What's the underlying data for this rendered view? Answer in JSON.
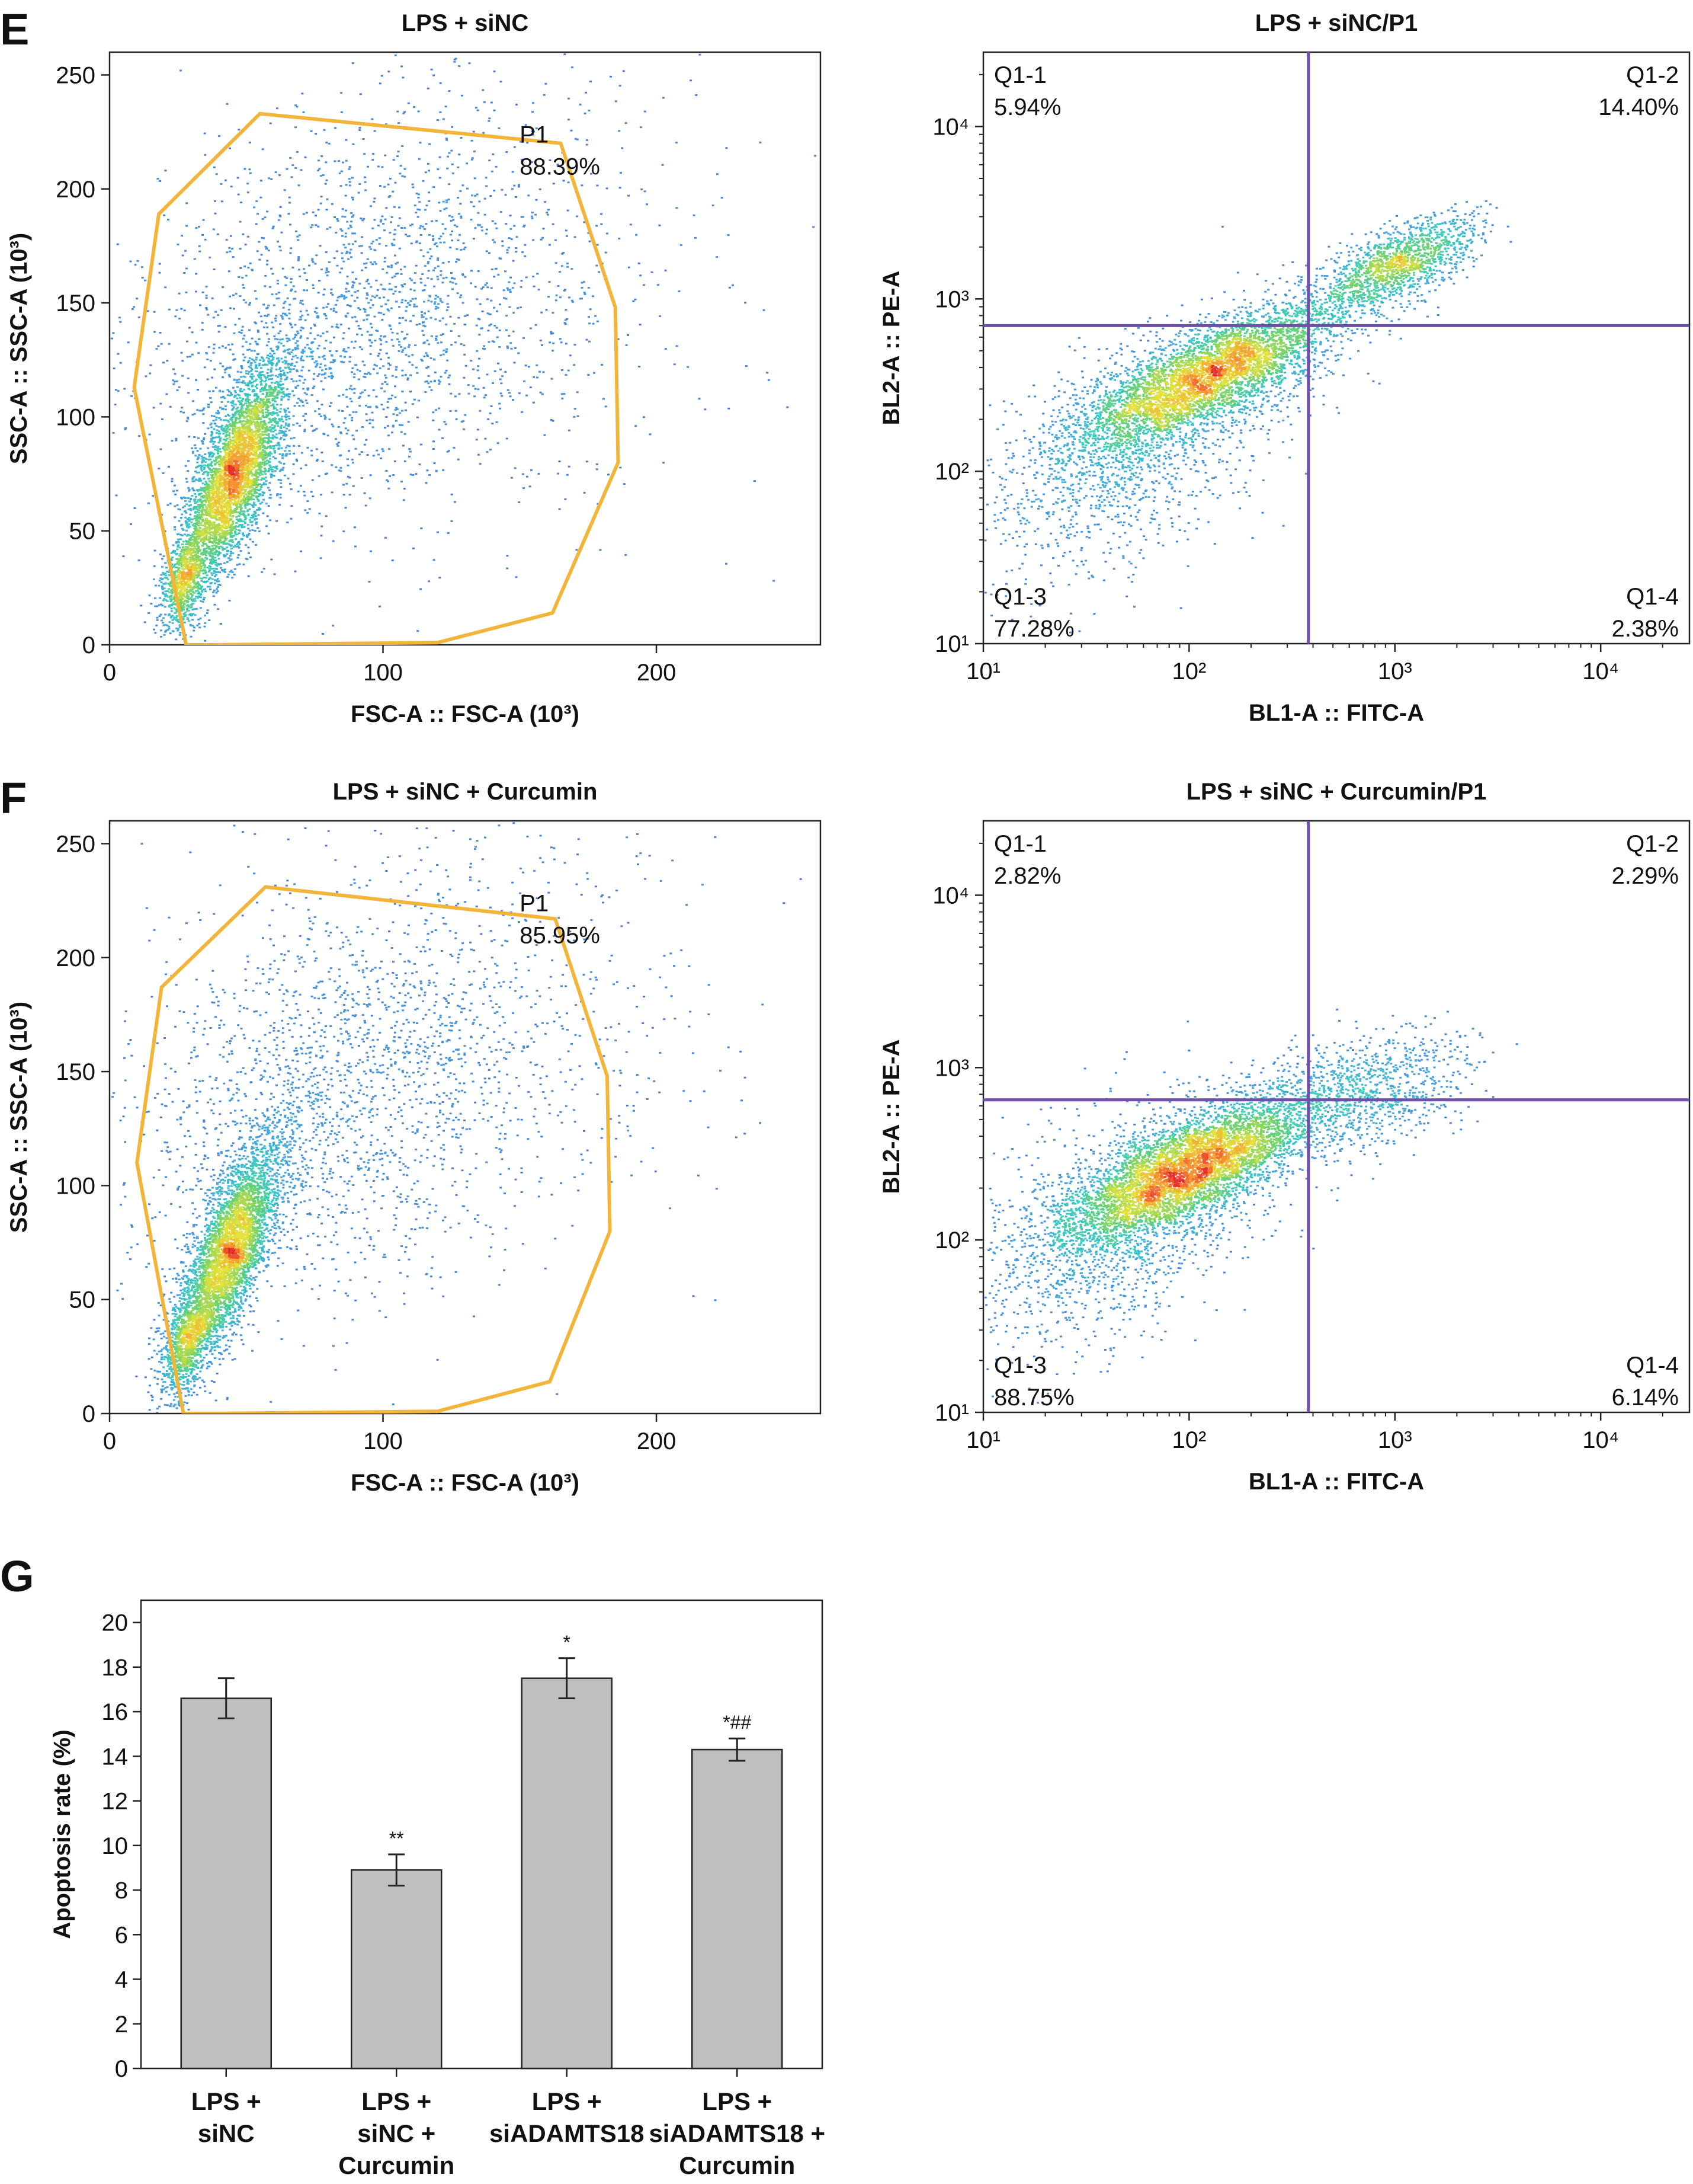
{
  "panels": [
    {
      "letter": "E",
      "anchor_plot": 0
    },
    {
      "letter": "F",
      "anchor_plot": 2
    },
    {
      "letter": "G",
      "anchor_plot": 4
    }
  ],
  "chart_data": [
    {
      "type": "scatter",
      "title": "LPS + siNC",
      "xlabel": "FSC-A :: FSC-A (10³)",
      "ylabel": "SSC-A :: SSC-A (10³)",
      "xlim": [
        0,
        260
      ],
      "ylim": [
        0,
        260
      ],
      "x_ticks": [
        0,
        100,
        200
      ],
      "y_ticks": [
        0,
        50,
        100,
        150,
        200,
        250
      ],
      "scale": "linear",
      "grid": false,
      "density": {
        "seed": 11,
        "clusters": [
          {
            "x": 45,
            "y": 75,
            "sx": 10,
            "sy": 25,
            "rho": 0.72,
            "n": 4200
          },
          {
            "x": 27,
            "y": 28,
            "sx": 4,
            "sy": 10,
            "rho": 0.4,
            "n": 700
          },
          {
            "x": 90,
            "y": 140,
            "sx": 40,
            "sy": 45,
            "rho": 0.25,
            "n": 1800
          },
          {
            "x": 130,
            "y": 160,
            "sx": 55,
            "sy": 55,
            "rho": 0.1,
            "n": 500
          }
        ]
      },
      "gate": {
        "name": "P1",
        "percent": "88.39%",
        "vertices": [
          [
            28,
            0
          ],
          [
            38,
            0
          ],
          [
            120,
            1
          ],
          [
            162,
            14
          ],
          [
            186,
            80
          ],
          [
            185,
            148
          ],
          [
            165,
            220
          ],
          [
            55,
            233
          ],
          [
            18,
            189
          ],
          [
            9,
            113
          ],
          [
            28,
            0
          ]
        ]
      }
    },
    {
      "type": "scatter",
      "title": "LPS + siNC/P1",
      "xlabel": "BL1-A :: FITC-A",
      "ylabel": "BL2-A :: PE-A",
      "scale": "log",
      "xlim": [
        10,
        27000
      ],
      "ylim": [
        10,
        27000
      ],
      "x_ticks": [
        "10¹",
        "10²",
        "10³",
        "10⁴"
      ],
      "y_ticks": [
        "10¹",
        "10²",
        "10³",
        "10⁴"
      ],
      "grid": false,
      "threshold_x": 380,
      "threshold_y": 700,
      "density": {
        "seed": 23,
        "clusters": [
          {
            "x": 2.08,
            "y": 2.55,
            "sx": 0.33,
            "sy": 0.22,
            "rho": 0.78,
            "n": 4400
          },
          {
            "x": 3.0,
            "y": 3.2,
            "sx": 0.2,
            "sy": 0.14,
            "rho": 0.7,
            "n": 1400
          },
          {
            "x": 1.7,
            "y": 2.1,
            "sx": 0.35,
            "sy": 0.35,
            "rho": 0.5,
            "n": 1300
          }
        ]
      },
      "quadrants": [
        {
          "name": "Q1-1",
          "percent": "5.94%",
          "pos": "top-left"
        },
        {
          "name": "Q1-2",
          "percent": "14.40%",
          "pos": "top-right"
        },
        {
          "name": "Q1-3",
          "percent": "77.28%",
          "pos": "bottom-left"
        },
        {
          "name": "Q1-4",
          "percent": "2.38%",
          "pos": "bottom-right"
        }
      ]
    },
    {
      "type": "scatter",
      "title": "LPS + siNC + Curcumin",
      "xlabel": "FSC-A :: FSC-A (10³)",
      "ylabel": "SSC-A :: SSC-A (10³)",
      "xlim": [
        0,
        260
      ],
      "ylim": [
        0,
        260
      ],
      "x_ticks": [
        0,
        100,
        200
      ],
      "y_ticks": [
        0,
        50,
        100,
        150,
        200,
        250
      ],
      "scale": "linear",
      "grid": false,
      "density": {
        "seed": 37,
        "clusters": [
          {
            "x": 43,
            "y": 70,
            "sx": 10,
            "sy": 26,
            "rho": 0.75,
            "n": 4300
          },
          {
            "x": 27,
            "y": 30,
            "sx": 4,
            "sy": 10,
            "rho": 0.4,
            "n": 650
          },
          {
            "x": 85,
            "y": 140,
            "sx": 40,
            "sy": 45,
            "rho": 0.25,
            "n": 1800
          },
          {
            "x": 130,
            "y": 170,
            "sx": 55,
            "sy": 55,
            "rho": 0.1,
            "n": 500
          }
        ]
      },
      "gate": {
        "name": "P1",
        "percent": "85.95%",
        "vertices": [
          [
            27,
            0
          ],
          [
            38,
            0
          ],
          [
            120,
            1
          ],
          [
            161,
            14
          ],
          [
            183,
            80
          ],
          [
            182,
            148
          ],
          [
            163,
            217
          ],
          [
            57,
            231
          ],
          [
            19,
            187
          ],
          [
            10,
            110
          ],
          [
            27,
            0
          ]
        ]
      }
    },
    {
      "type": "scatter",
      "title": "LPS + siNC + Curcumin/P1",
      "xlabel": "BL1-A :: FITC-A",
      "ylabel": "BL2-A :: PE-A",
      "scale": "log",
      "xlim": [
        10,
        27000
      ],
      "ylim": [
        10,
        27000
      ],
      "x_ticks": [
        "10¹",
        "10²",
        "10³",
        "10⁴"
      ],
      "y_ticks": [
        "10¹",
        "10²",
        "10³",
        "10⁴"
      ],
      "grid": false,
      "threshold_x": 380,
      "threshold_y": 650,
      "density": {
        "seed": 41,
        "clusters": [
          {
            "x": 2.0,
            "y": 2.42,
            "sx": 0.3,
            "sy": 0.22,
            "rho": 0.72,
            "n": 5200
          },
          {
            "x": 2.85,
            "y": 2.85,
            "sx": 0.25,
            "sy": 0.18,
            "rho": 0.4,
            "n": 900
          },
          {
            "x": 1.6,
            "y": 2.05,
            "sx": 0.35,
            "sy": 0.35,
            "rho": 0.4,
            "n": 1300
          }
        ]
      },
      "quadrants": [
        {
          "name": "Q1-1",
          "percent": "2.82%",
          "pos": "top-left"
        },
        {
          "name": "Q1-2",
          "percent": "2.29%",
          "pos": "top-right"
        },
        {
          "name": "Q1-3",
          "percent": "88.75%",
          "pos": "bottom-left"
        },
        {
          "name": "Q1-4",
          "percent": "6.14%",
          "pos": "bottom-right"
        }
      ]
    },
    {
      "type": "bar",
      "title": "",
      "xlabel": "",
      "ylabel": "Apoptosis rate (%)",
      "ylim": [
        0,
        21
      ],
      "y_ticks": [
        0,
        2,
        4,
        6,
        8,
        10,
        12,
        14,
        16,
        18,
        20
      ],
      "grid": false,
      "categories": [
        [
          "LPS +",
          "siNC"
        ],
        [
          "LPS +",
          "siNC +",
          "Curcumin"
        ],
        [
          "LPS +",
          "siADAMTS18"
        ],
        [
          "LPS +",
          "siADAMTS18 +",
          "Curcumin"
        ]
      ],
      "values": [
        16.6,
        8.9,
        17.5,
        14.3
      ],
      "errors": [
        0.9,
        0.7,
        0.9,
        0.5
      ],
      "significance": [
        "",
        "**",
        "*",
        "*##"
      ],
      "colors": {
        "bar": "#bfbfbf"
      }
    }
  ]
}
